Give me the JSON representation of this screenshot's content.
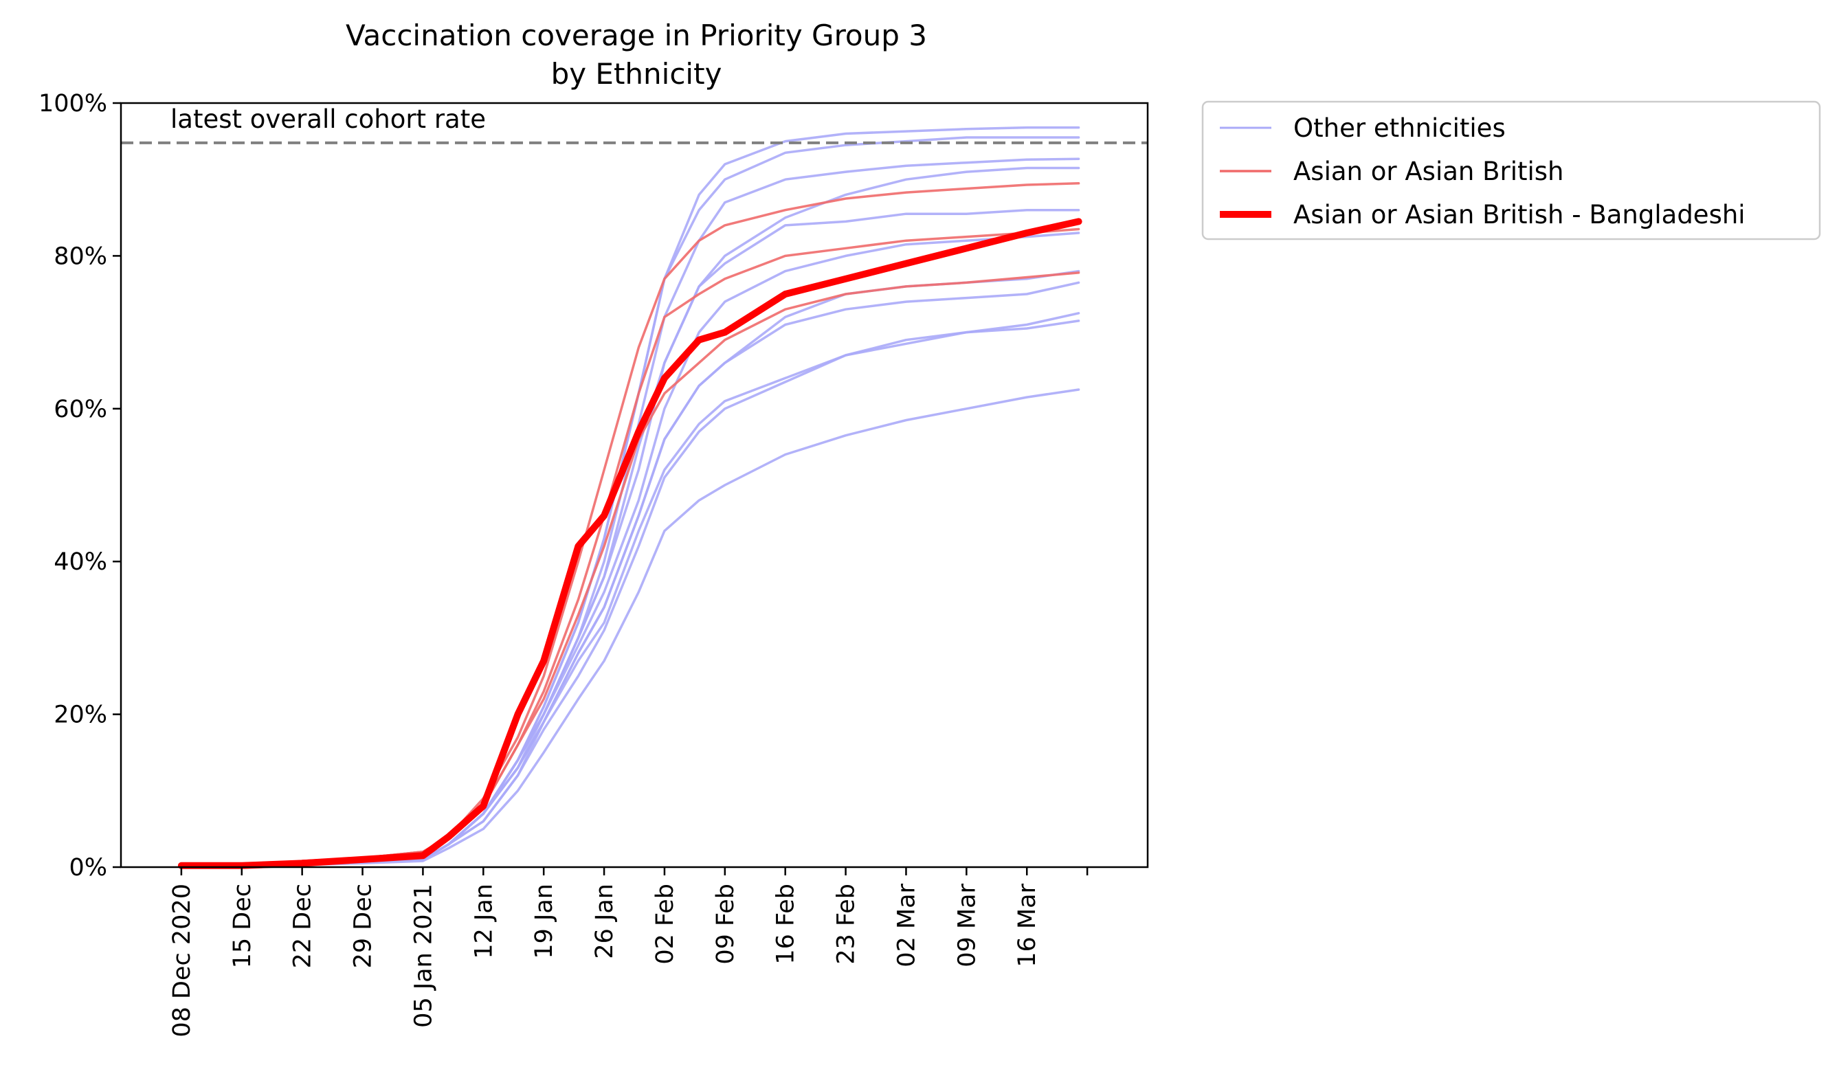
{
  "chart_data": {
    "type": "line",
    "title": "Vaccination coverage in Priority Group 3",
    "subtitle": "by Ethnicity",
    "xlabel": "",
    "ylabel": "",
    "x_range": [
      "2020-12-01",
      "2021-03-30"
    ],
    "ylim": [
      0,
      100
    ],
    "y_ticks": [
      0,
      20,
      40,
      60,
      80,
      100
    ],
    "y_tick_labels": [
      "0%",
      "20%",
      "40%",
      "60%",
      "80%",
      "100%"
    ],
    "x_ticks": [
      {
        "date": "2020-12-08",
        "label": "08 Dec 2020"
      },
      {
        "date": "2020-12-15",
        "label": "15 Dec"
      },
      {
        "date": "2020-12-22",
        "label": "22 Dec"
      },
      {
        "date": "2020-12-29",
        "label": "29 Dec"
      },
      {
        "date": "2021-01-05",
        "label": "05 Jan 2021"
      },
      {
        "date": "2021-01-12",
        "label": "12 Jan"
      },
      {
        "date": "2021-01-19",
        "label": "19 Jan"
      },
      {
        "date": "2021-01-26",
        "label": "26 Jan"
      },
      {
        "date": "2021-02-02",
        "label": "02 Feb"
      },
      {
        "date": "2021-02-09",
        "label": "09 Feb"
      },
      {
        "date": "2021-02-16",
        "label": "16 Feb"
      },
      {
        "date": "2021-02-23",
        "label": "23 Feb"
      },
      {
        "date": "2021-03-02",
        "label": "02 Mar"
      },
      {
        "date": "2021-03-09",
        "label": "09 Mar"
      },
      {
        "date": "2021-03-16",
        "label": "16 Mar"
      },
      {
        "date": "2021-03-23",
        "label": ""
      }
    ],
    "reference_line": {
      "value": 94.8,
      "label": "latest overall cohort rate",
      "color": "#808080",
      "style": "dashed"
    },
    "grid": false,
    "legend_position": "outside-top-right",
    "legend": [
      {
        "label": "Other ethnicities",
        "color": "#aaaaf8",
        "style": "thin"
      },
      {
        "label": "Asian or Asian British",
        "color": "#f06a6a",
        "style": "medium"
      },
      {
        "label": "Asian or Asian British - Bangladeshi",
        "color": "#ff0000",
        "style": "thick"
      }
    ],
    "colors": {
      "other": "#aaaaf8",
      "asian": "#f06a6a",
      "highlight": "#ff0000",
      "refline": "#808080"
    },
    "x": [
      "2020-12-08",
      "2020-12-15",
      "2020-12-22",
      "2020-12-29",
      "2021-01-05",
      "2021-01-08",
      "2021-01-12",
      "2021-01-16",
      "2021-01-19",
      "2021-01-23",
      "2021-01-26",
      "2021-01-30",
      "2021-02-02",
      "2021-02-06",
      "2021-02-09",
      "2021-02-16",
      "2021-02-23",
      "2021-03-02",
      "2021-03-09",
      "2021-03-16",
      "2021-03-22"
    ],
    "series": [
      {
        "group": "other",
        "values": [
          0,
          0,
          0.5,
          0.8,
          1.0,
          3,
          7,
          14,
          20,
          30,
          38,
          55,
          66,
          76,
          80,
          85,
          88,
          90,
          91,
          91.5,
          91.5
        ]
      },
      {
        "group": "other",
        "values": [
          0,
          0,
          0.5,
          0.8,
          1.0,
          3,
          7,
          14,
          21,
          32,
          43,
          62,
          77,
          86,
          90,
          93.5,
          94.5,
          95,
          95.5,
          95.5,
          95.5
        ]
      },
      {
        "group": "other",
        "values": [
          0,
          0,
          0.5,
          0.8,
          1.0,
          3,
          7,
          14,
          21,
          32,
          43,
          62,
          77,
          88,
          92,
          95,
          96,
          96.3,
          96.6,
          96.8,
          96.8
        ]
      },
      {
        "group": "other",
        "values": [
          0,
          0,
          0.5,
          0.8,
          1.0,
          3,
          7,
          14,
          20,
          30,
          40,
          58,
          72,
          82,
          87,
          90,
          91,
          91.8,
          92.2,
          92.6,
          92.7
        ]
      },
      {
        "group": "other",
        "values": [
          0,
          0,
          0.5,
          0.8,
          1.0,
          3,
          7,
          14,
          20,
          30,
          38,
          52,
          66,
          76,
          79,
          84,
          84.5,
          85.5,
          85.5,
          86,
          86
        ]
      },
      {
        "group": "other",
        "values": [
          0,
          0,
          0.5,
          0.8,
          1.0,
          3,
          7,
          13,
          20,
          29,
          36,
          48,
          60,
          70,
          74,
          78,
          80,
          81.5,
          82,
          82.5,
          83
        ]
      },
      {
        "group": "other",
        "values": [
          0,
          0,
          0.5,
          0.8,
          1.0,
          3,
          7,
          13,
          19,
          28,
          34,
          46,
          56,
          63,
          66,
          71,
          73,
          74,
          74.5,
          75,
          76.5
        ]
      },
      {
        "group": "other",
        "values": [
          0,
          0,
          0.5,
          0.8,
          1.0,
          3,
          7,
          13,
          19,
          28,
          34,
          46,
          56,
          63,
          66,
          72,
          75,
          76,
          76.5,
          77,
          78
        ]
      },
      {
        "group": "other",
        "values": [
          0,
          0,
          0.5,
          0.8,
          1.0,
          3,
          6,
          12,
          19,
          27,
          32,
          44,
          52,
          58,
          61,
          64,
          67,
          69,
          70,
          70.5,
          71.5
        ]
      },
      {
        "group": "other",
        "values": [
          0,
          0,
          0.5,
          0.8,
          1.0,
          3,
          6,
          12,
          18,
          25,
          31,
          42,
          51,
          57,
          60,
          63.5,
          67,
          68.5,
          70,
          71,
          72.5
        ]
      },
      {
        "group": "other",
        "values": [
          0,
          0,
          0.3,
          0.5,
          0.8,
          2.5,
          5,
          10,
          15,
          22,
          27,
          36,
          44,
          48,
          50,
          54,
          56.5,
          58.5,
          60,
          61.5,
          62.5
        ]
      },
      {
        "group": "asian",
        "values": [
          0,
          0,
          0.8,
          1.2,
          2.0,
          4,
          9,
          17,
          25,
          40,
          52,
          68,
          77,
          82,
          84,
          86,
          87.5,
          88.3,
          88.8,
          89.3,
          89.5
        ]
      },
      {
        "group": "asian",
        "values": [
          0,
          0,
          0.8,
          1.2,
          2.0,
          4,
          8,
          16,
          23,
          35,
          46,
          62,
          72,
          75,
          77,
          80,
          81,
          82,
          82.5,
          83,
          83.5
        ]
      },
      {
        "group": "asian",
        "values": [
          0,
          0,
          0.8,
          1.2,
          2.0,
          4,
          8,
          16,
          22,
          33,
          42,
          56,
          62,
          66,
          69,
          73,
          75,
          76,
          76.5,
          77.2,
          77.8
        ]
      },
      {
        "group": "highlight",
        "values": [
          0.2,
          0.2,
          0.5,
          1.0,
          1.5,
          4,
          8,
          20,
          27,
          42,
          46,
          57,
          64,
          69,
          70,
          75,
          77,
          79,
          81,
          83,
          84.5
        ]
      }
    ]
  }
}
